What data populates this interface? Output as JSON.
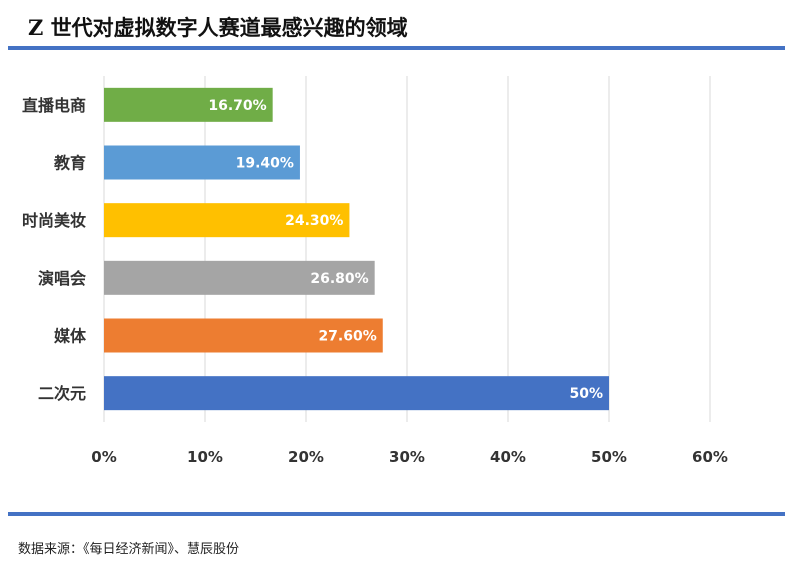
{
  "header": {
    "title": "Z 世代对虚拟数字人赛道最感兴趣的领域"
  },
  "footer": {
    "source": "数据来源：《每日经济新闻》、慧辰股份"
  },
  "colors": {
    "rule": "#4472c4",
    "grid": "#d9d9d9",
    "axis_text": "#333333",
    "bar_label": "#ffffff"
  },
  "chart_data": {
    "type": "bar",
    "orientation": "horizontal",
    "categories": [
      "直播电商",
      "教育",
      "时尚美妆",
      "演唱会",
      "媒体",
      "二次元"
    ],
    "values": [
      16.7,
      19.4,
      24.3,
      26.8,
      27.6,
      50
    ],
    "data_labels": [
      "16.70%",
      "19.40%",
      "24.30%",
      "26.80%",
      "27.60%",
      "50%"
    ],
    "bar_colors": [
      "#70ad47",
      "#5b9bd5",
      "#ffc000",
      "#a5a5a5",
      "#ed7d31",
      "#4472c4"
    ],
    "xlim": [
      0,
      60
    ],
    "x_ticks": [
      0,
      10,
      20,
      30,
      40,
      50,
      60
    ],
    "x_tick_labels": [
      "0%",
      "10%",
      "20%",
      "30%",
      "40%",
      "50%",
      "60%"
    ],
    "xlabel": "",
    "ylabel": "",
    "grid": true,
    "legend": "none"
  }
}
